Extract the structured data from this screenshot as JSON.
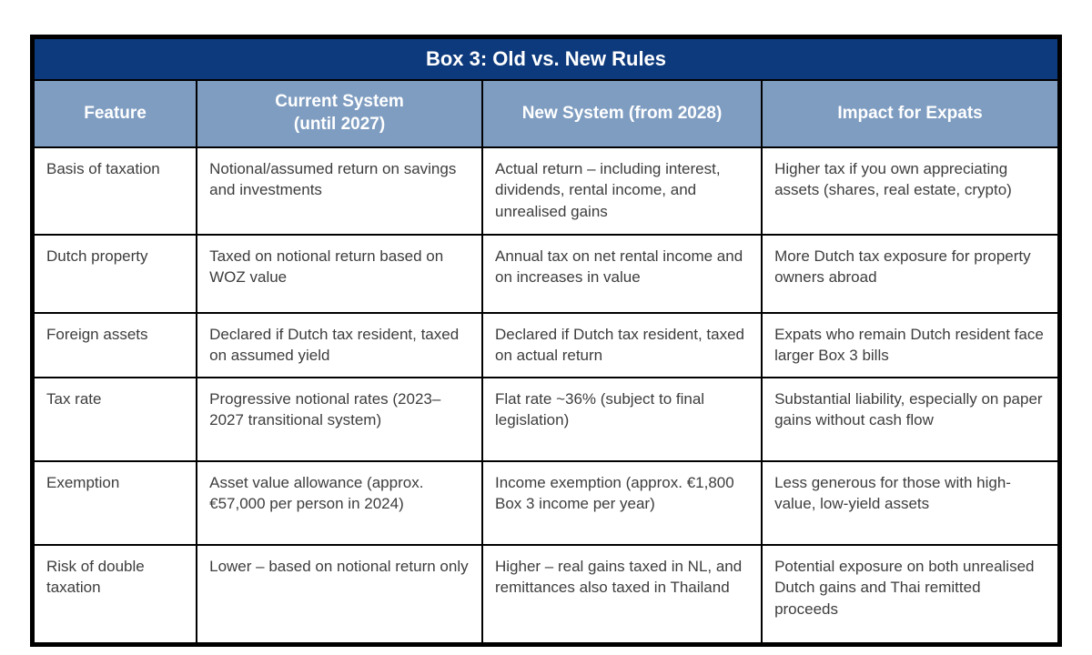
{
  "chart_data": {
    "type": "table",
    "title": "Box 3: Old vs. New Rules",
    "columns": [
      "Feature",
      "Current System\n(until 2027)",
      "New System (from 2028)",
      "Impact for Expats"
    ],
    "rows": [
      [
        "Basis of taxation",
        "Notional/assumed return on savings and investments",
        "Actual return – including interest, dividends, rental income, and unrealised gains",
        "Higher tax if you own appreciating assets (shares, real estate, crypto)"
      ],
      [
        "Dutch property",
        "Taxed on notional return based on WOZ value",
        "Annual tax on net rental income and on increases in value",
        "More Dutch tax exposure for property owners abroad"
      ],
      [
        "Foreign assets",
        "Declared if Dutch tax resident, taxed on assumed yield",
        "Declared if Dutch tax resident, taxed on actual return",
        "Expats who remain Dutch resident face larger Box 3 bills"
      ],
      [
        "Tax rate",
        "Progressive notional rates (2023–2027 transitional system)",
        "Flat rate ~36% (subject to final legislation)",
        "Substantial liability, especially on paper gains without cash flow"
      ],
      [
        "Exemption",
        "Asset value allowance (approx. €57,000 per person in 2024)",
        "Income exemption (approx. €1,800 Box 3 income per year)",
        "Less generous for those with high-value, low-yield assets"
      ],
      [
        "Risk of double taxation",
        "Lower – based on notional return only",
        "Higher – real gains taxed in NL, and remittances also taxed in Thailand",
        "Potential exposure on both unrealised Dutch gains and Thai remitted proceeds"
      ]
    ],
    "colors": {
      "title_background": "#0d3a7c",
      "header_background": "#7f9dc1",
      "header_text": "#ffffff",
      "body_text": "#3d3d3d",
      "border": "#000000"
    },
    "layout": {
      "grid": "all-borders",
      "legend_position": "none"
    }
  }
}
